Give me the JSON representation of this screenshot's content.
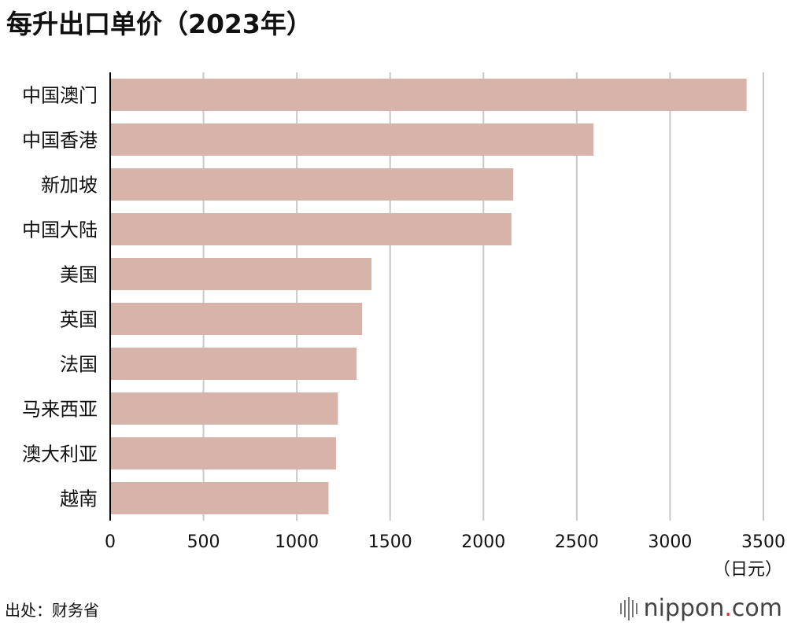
{
  "title": "每升出口单价（2023年）",
  "unit_label": "（日元）",
  "source": "出处：财务省",
  "logo": {
    "name": "nippon",
    "dot": ".",
    "tld": "com"
  },
  "colors": {
    "bar": "#d8b3aa",
    "grid": "#c8c8c8",
    "axis": "#000000",
    "logo_dot": "#e0262d"
  },
  "chart_data": {
    "type": "bar",
    "orientation": "horizontal",
    "categories": [
      "中国澳门",
      "中国香港",
      "新加坡",
      "中国大陆",
      "美国",
      "英国",
      "法国",
      "马来西亚",
      "澳大利亚",
      "越南"
    ],
    "values": [
      3410,
      2590,
      2160,
      2150,
      1400,
      1350,
      1320,
      1220,
      1210,
      1170
    ],
    "xlim": [
      0,
      3500
    ],
    "xticks": [
      0,
      500,
      1000,
      1500,
      2000,
      2500,
      3000,
      3500
    ],
    "title": "每升出口单价（2023年）",
    "xlabel": "（日元）",
    "ylabel": "",
    "grid": true
  }
}
